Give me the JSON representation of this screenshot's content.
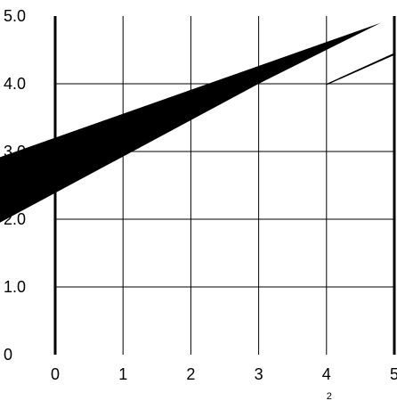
{
  "chart_data": {
    "type": "diagram",
    "x_ticks": [
      "0",
      "1",
      "2",
      "3",
      "4",
      "5"
    ],
    "y_ticks": [
      "0",
      "1.0",
      "2.0",
      "3.0",
      "4.0",
      "5.0"
    ],
    "subscript_label": "2",
    "xlim": [
      0,
      5
    ],
    "ylim": [
      0,
      5
    ],
    "grid": true,
    "shapes": [
      {
        "name": "wide-wedge",
        "points": [
          [
            -1.0,
            1.85
          ],
          [
            -1.0,
            2.85
          ],
          [
            4.8,
            4.9
          ],
          [
            3.0,
            4.0
          ]
        ]
      },
      {
        "name": "thin-sliver",
        "points": [
          [
            4.0,
            4.0
          ],
          [
            4.99,
            4.45
          ],
          [
            4.99,
            4.42
          ],
          [
            4.0,
            3.98
          ]
        ]
      }
    ],
    "colors": {
      "grid": "#000000",
      "fill": "#000000",
      "background": "#ffffff"
    }
  }
}
